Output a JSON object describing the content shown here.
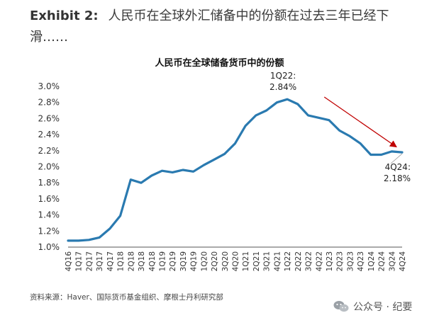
{
  "header": {
    "exhibit_label": "Exhibit 2:",
    "exhibit_text": "人民币在全球外汇储备中的份额在过去三年已经下滑……"
  },
  "chart_data": {
    "type": "line",
    "title": "人民币在全球储备货币中的份额",
    "categories": [
      "4Q16",
      "1Q17",
      "2Q17",
      "3Q17",
      "4Q17",
      "1Q18",
      "2Q18",
      "3Q18",
      "4Q18",
      "1Q19",
      "2Q19",
      "3Q19",
      "4Q19",
      "1Q20",
      "2Q20",
      "3Q20",
      "4Q20",
      "1Q21",
      "2Q21",
      "3Q21",
      "4Q21",
      "1Q22",
      "2Q22",
      "3Q22",
      "4Q22",
      "1Q23",
      "2Q23",
      "3Q23",
      "4Q23",
      "1Q24",
      "2Q24",
      "3Q24",
      "4Q24"
    ],
    "x_tick_labels": [
      "4Q16",
      "1Q17",
      "2Q17",
      "3Q17",
      "4Q17",
      "1Q18",
      "2Q18",
      "3Q18",
      "4Q18",
      "1Q19",
      "2Q19",
      "3Q19",
      "4Q19",
      "1Q20",
      "2Q20",
      "3Q20",
      "4Q20",
      "1Q21",
      "2Q21",
      "3Q21",
      "4Q21",
      "1Q22",
      "2Q22",
      "3Q22",
      "4Q22",
      "1Q23",
      "2Q23",
      "3Q23",
      "4Q23",
      "1Q24",
      "2Q24",
      "3Q24",
      "4Q24"
    ],
    "series": [
      {
        "values": [
          1.08,
          1.08,
          1.09,
          1.12,
          1.23,
          1.39,
          1.84,
          1.8,
          1.89,
          1.95,
          1.93,
          1.96,
          1.94,
          2.02,
          2.09,
          2.16,
          2.29,
          2.51,
          2.64,
          2.7,
          2.8,
          2.84,
          2.78,
          2.64,
          2.61,
          2.58,
          2.45,
          2.38,
          2.29,
          2.15,
          2.15,
          2.19,
          2.18
        ],
        "color": "#2a7ab0"
      }
    ],
    "ylim": [
      1.0,
      3.0
    ],
    "yticks": [
      1.0,
      1.2,
      1.4,
      1.6,
      1.8,
      2.0,
      2.2,
      2.4,
      2.6,
      2.8,
      3.0
    ],
    "ytick_labels": [
      "1.0%",
      "1.2%",
      "1.4%",
      "1.6%",
      "1.8%",
      "2.0%",
      "2.2%",
      "2.4%",
      "2.6%",
      "2.8%",
      "3.0%"
    ],
    "grid": false,
    "annotations": [
      {
        "label_line1": "1Q22:",
        "label_line2": "2.84%",
        "x": "1Q22",
        "y": 2.84
      },
      {
        "label_line1": "4Q24:",
        "label_line2": "2.18%",
        "x": "4Q24",
        "y": 2.18
      }
    ],
    "trend_arrow": {
      "color": "#c00000",
      "from_x": "4Q22",
      "to_x": "3Q24"
    }
  },
  "footer": {
    "source": "资料来源：Haver、国际货币基金组织、摩根士丹利研究部",
    "watermark": "公众号 · 纪要"
  }
}
